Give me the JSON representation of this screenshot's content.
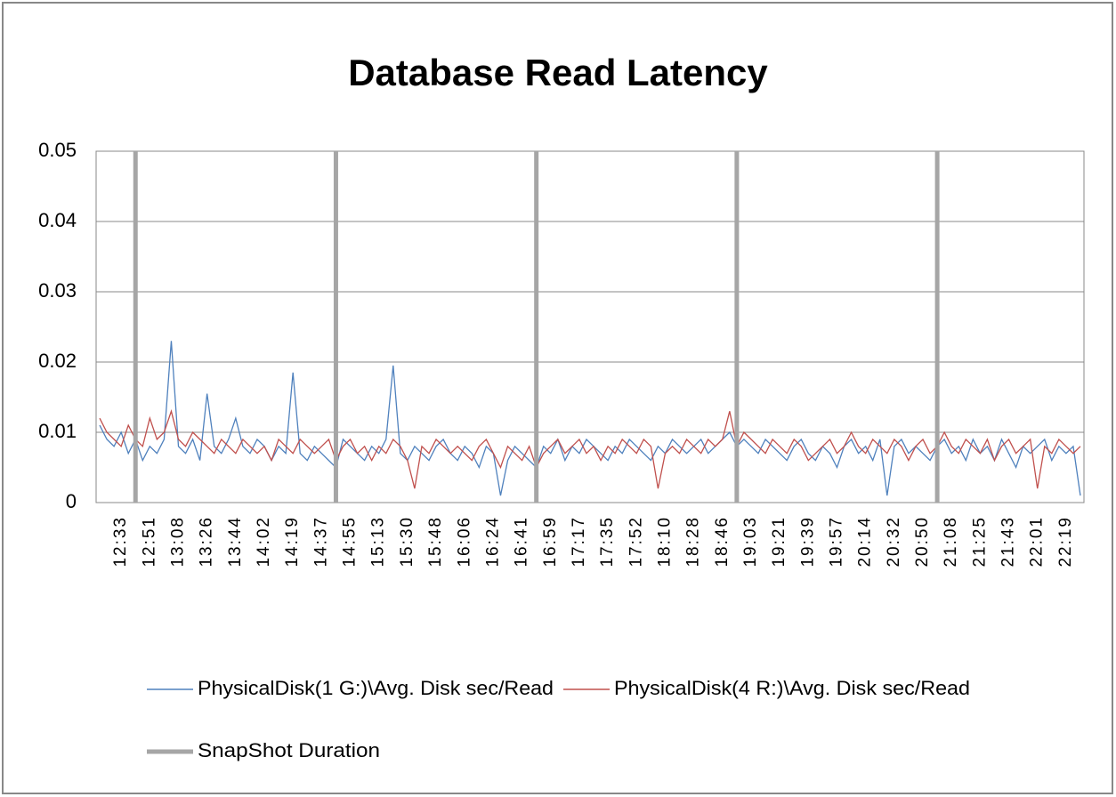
{
  "chart_data": {
    "type": "line",
    "title": "Database Read Latency",
    "categories": [
      null,
      null,
      null,
      "12:33",
      null,
      null,
      null,
      "12:51",
      null,
      null,
      null,
      "13:08",
      null,
      null,
      null,
      "13:26",
      null,
      null,
      null,
      "13:44",
      null,
      null,
      null,
      "14:02",
      null,
      null,
      null,
      "14:19",
      null,
      null,
      null,
      "14:37",
      null,
      null,
      null,
      "14:55",
      null,
      null,
      null,
      "15:13",
      null,
      null,
      null,
      "15:30",
      null,
      null,
      null,
      "15:48",
      null,
      null,
      null,
      "16:06",
      null,
      null,
      null,
      "16:24",
      null,
      null,
      null,
      "16:41",
      null,
      null,
      null,
      "16:59",
      null,
      null,
      null,
      "17:17",
      null,
      null,
      null,
      "17:35",
      null,
      null,
      null,
      "17:52",
      null,
      null,
      null,
      "18:10",
      null,
      null,
      null,
      "18:28",
      null,
      null,
      null,
      "18:46",
      null,
      null,
      null,
      "19:03",
      null,
      null,
      null,
      "19:21",
      null,
      null,
      null,
      "19:39",
      null,
      null,
      null,
      "19:57",
      null,
      null,
      null,
      "20:14",
      null,
      null,
      null,
      "20:32",
      null,
      null,
      null,
      "20:50",
      null,
      null,
      null,
      "21:08",
      null,
      null,
      null,
      "21:25",
      null,
      null,
      null,
      "21:43",
      null,
      null,
      null,
      "22:01",
      null,
      null,
      null,
      "22:19",
      null,
      null
    ],
    "series": [
      {
        "name": "PhysicalDisk(1 G:)\\Avg. Disk sec/Read",
        "color": "#4f81bd",
        "type": "line",
        "values": [
          0.011,
          0.009,
          0.008,
          0.01,
          0.007,
          0.009,
          0.006,
          0.008,
          0.007,
          0.009,
          0.023,
          0.008,
          0.007,
          0.009,
          0.006,
          0.0155,
          0.008,
          0.007,
          0.009,
          0.012,
          0.008,
          0.007,
          0.009,
          0.008,
          0.006,
          0.008,
          0.007,
          0.0185,
          0.007,
          0.006,
          0.008,
          0.007,
          0.006,
          0.005,
          0.009,
          0.008,
          0.007,
          0.006,
          0.008,
          0.007,
          0.009,
          0.0195,
          0.007,
          0.006,
          0.008,
          0.007,
          0.006,
          0.008,
          0.009,
          0.007,
          0.006,
          0.008,
          0.007,
          0.005,
          0.008,
          0.007,
          0.001,
          0.006,
          0.008,
          0.007,
          0.006,
          0.005,
          0.008,
          0.007,
          0.009,
          0.006,
          0.008,
          0.007,
          0.009,
          0.008,
          0.007,
          0.006,
          0.008,
          0.007,
          0.009,
          0.008,
          0.007,
          0.006,
          0.008,
          0.007,
          0.009,
          0.008,
          0.007,
          0.008,
          0.009,
          0.007,
          0.008,
          0.009,
          0.01,
          0.008,
          0.009,
          0.008,
          0.007,
          0.009,
          0.008,
          0.007,
          0.006,
          0.008,
          0.009,
          0.007,
          0.006,
          0.008,
          0.007,
          0.005,
          0.008,
          0.009,
          0.007,
          0.008,
          0.006,
          0.009,
          0.001,
          0.008,
          0.009,
          0.007,
          0.008,
          0.007,
          0.006,
          0.008,
          0.009,
          0.007,
          0.008,
          0.006,
          0.009,
          0.007,
          0.008,
          0.006,
          0.009,
          0.007,
          0.005,
          0.008,
          0.007,
          0.008,
          0.009,
          0.006,
          0.008,
          0.007,
          0.008,
          0.001
        ]
      },
      {
        "name": "PhysicalDisk(4 R:)\\Avg. Disk sec/Read",
        "color": "#c0504d",
        "type": "line",
        "values": [
          0.012,
          0.01,
          0.009,
          0.008,
          0.011,
          0.009,
          0.008,
          0.012,
          0.009,
          0.01,
          0.013,
          0.009,
          0.008,
          0.01,
          0.009,
          0.008,
          0.007,
          0.009,
          0.008,
          0.007,
          0.009,
          0.008,
          0.007,
          0.008,
          0.006,
          0.009,
          0.008,
          0.007,
          0.009,
          0.008,
          0.007,
          0.008,
          0.009,
          0.006,
          0.008,
          0.009,
          0.007,
          0.008,
          0.006,
          0.008,
          0.007,
          0.009,
          0.008,
          0.006,
          0.002,
          0.008,
          0.007,
          0.009,
          0.008,
          0.007,
          0.008,
          0.007,
          0.006,
          0.008,
          0.009,
          0.007,
          0.005,
          0.008,
          0.007,
          0.006,
          0.008,
          0.005,
          0.007,
          0.008,
          0.009,
          0.007,
          0.008,
          0.009,
          0.007,
          0.008,
          0.006,
          0.008,
          0.007,
          0.009,
          0.008,
          0.007,
          0.009,
          0.008,
          0.002,
          0.007,
          0.008,
          0.007,
          0.009,
          0.008,
          0.007,
          0.009,
          0.008,
          0.009,
          0.013,
          0.008,
          0.01,
          0.009,
          0.008,
          0.007,
          0.009,
          0.008,
          0.007,
          0.009,
          0.008,
          0.006,
          0.007,
          0.008,
          0.009,
          0.007,
          0.008,
          0.01,
          0.008,
          0.007,
          0.009,
          0.008,
          0.007,
          0.009,
          0.008,
          0.006,
          0.008,
          0.009,
          0.007,
          0.008,
          0.01,
          0.008,
          0.007,
          0.009,
          0.008,
          0.007,
          0.009,
          0.006,
          0.008,
          0.009,
          0.007,
          0.008,
          0.009,
          0.002,
          0.008,
          0.007,
          0.009,
          0.008,
          0.007,
          0.008
        ]
      },
      {
        "name": "SnapShot Duration",
        "color": "#a6a6a6",
        "type": "vline",
        "values": [
          null,
          null,
          null,
          null,
          null,
          0.05,
          null,
          null,
          null,
          null,
          null,
          null,
          null,
          null,
          null,
          null,
          null,
          null,
          null,
          null,
          null,
          null,
          null,
          null,
          null,
          null,
          null,
          null,
          null,
          null,
          null,
          null,
          null,
          0.05,
          null,
          null,
          null,
          null,
          null,
          null,
          null,
          null,
          null,
          null,
          null,
          null,
          null,
          null,
          null,
          null,
          null,
          null,
          null,
          null,
          null,
          null,
          null,
          null,
          null,
          null,
          null,
          0.05,
          null,
          null,
          null,
          null,
          null,
          null,
          null,
          null,
          null,
          null,
          null,
          null,
          null,
          null,
          null,
          null,
          null,
          null,
          null,
          null,
          null,
          null,
          null,
          null,
          null,
          null,
          null,
          0.05,
          null,
          null,
          null,
          null,
          null,
          null,
          null,
          null,
          null,
          null,
          null,
          null,
          null,
          null,
          null,
          null,
          null,
          null,
          null,
          null,
          null,
          null,
          null,
          null,
          null,
          null,
          null,
          0.05,
          null,
          null,
          null,
          null,
          null,
          null,
          null,
          null,
          null,
          null,
          null,
          null,
          null,
          null,
          null,
          null,
          null,
          null,
          null,
          null
        ]
      }
    ],
    "ylim": [
      0,
      0.05
    ],
    "yticks": [
      0,
      0.01,
      0.02,
      0.03,
      0.04,
      0.05
    ],
    "grid": true
  }
}
